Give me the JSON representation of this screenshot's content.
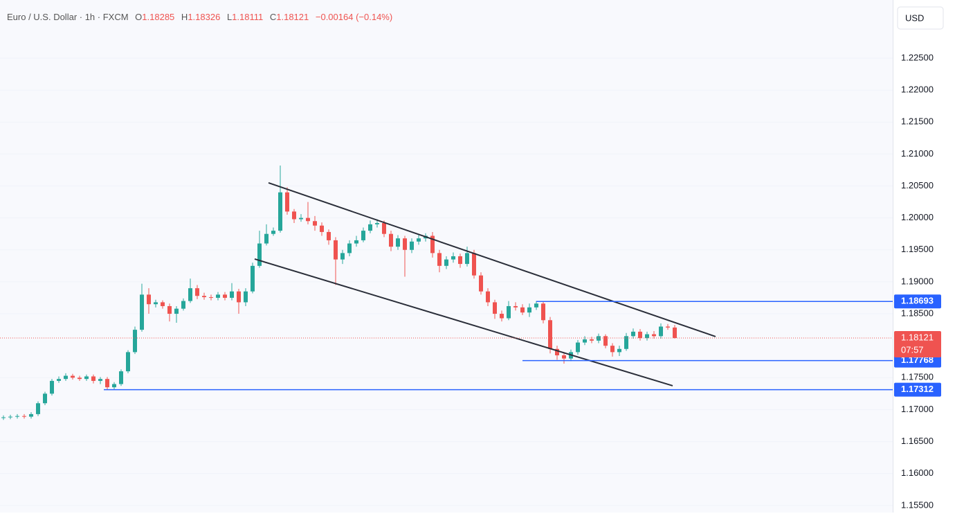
{
  "chart_data": {
    "type": "candlestick",
    "header": {
      "symbol": "Euro / U.S. Dollar · 1h · FXCM",
      "o_label": "O",
      "open": 1.18285,
      "h_label": "H",
      "high": 1.18326,
      "l_label": "L",
      "low": 1.18111,
      "c_label": "C",
      "close": 1.18121,
      "change": "−0.00164 (−0.14%)"
    },
    "currency": "USD",
    "countdown": "07:57",
    "open": [
      1.1687,
      1.1688,
      1.1689,
      1.169,
      1.1689,
      1.1693,
      1.171,
      1.1725,
      1.1745,
      1.1748,
      1.1753,
      1.175,
      1.1748,
      1.1752,
      1.1745,
      1.1748,
      1.1735,
      1.174,
      1.176,
      1.179,
      1.1825,
      1.188,
      1.1865,
      1.1868,
      1.1862,
      1.185,
      1.1858,
      1.187,
      1.189,
      1.1878,
      1.1876,
      1.1875,
      1.188,
      1.1875,
      1.1885,
      1.1868,
      1.1885,
      1.1925,
      1.196,
      1.1975,
      1.198,
      1.204,
      1.201,
      1.1998,
      1.2,
      1.1995,
      1.1988,
      1.1978,
      1.1965,
      1.1935,
      1.1945,
      1.196,
      1.1965,
      1.198,
      1.199,
      1.1992,
      1.1975,
      1.1955,
      1.1968,
      1.195,
      1.1963,
      1.1968,
      1.1972,
      1.1945,
      1.1925,
      1.1935,
      1.194,
      1.1928,
      1.1945,
      1.191,
      1.1885,
      1.1868,
      1.185,
      1.1843,
      1.1862,
      1.186,
      1.1852,
      1.186,
      1.1866,
      1.184,
      1.1795,
      1.1785,
      1.178,
      1.179,
      1.1805,
      1.181,
      1.1808,
      1.1815,
      1.18,
      1.179,
      1.1795,
      1.1815,
      1.1822,
      1.1812,
      1.1818,
      1.1815,
      1.183,
      1.18285
    ],
    "high": [
      1.1691,
      1.1692,
      1.1693,
      1.1693,
      1.1696,
      1.1713,
      1.1728,
      1.1748,
      1.1752,
      1.1757,
      1.1756,
      1.1753,
      1.1755,
      1.1755,
      1.1751,
      1.1751,
      1.1743,
      1.1763,
      1.1793,
      1.183,
      1.1897,
      1.189,
      1.1872,
      1.1871,
      1.1866,
      1.1862,
      1.1874,
      1.1905,
      1.1895,
      1.1883,
      1.188,
      1.1884,
      1.1884,
      1.1898,
      1.1889,
      1.189,
      1.193,
      1.198,
      1.199,
      1.1985,
      1.2082,
      1.2048,
      1.2014,
      1.2006,
      1.2025,
      1.2003,
      1.1993,
      1.1982,
      1.197,
      1.195,
      1.1965,
      1.1972,
      1.1985,
      1.1996,
      1.1998,
      1.1996,
      1.198,
      1.1973,
      1.1972,
      1.1968,
      1.1973,
      1.1976,
      1.1978,
      1.195,
      1.194,
      1.1946,
      1.1944,
      1.1955,
      1.195,
      1.1915,
      1.189,
      1.1872,
      1.1855,
      1.187,
      1.1868,
      1.1865,
      1.1866,
      1.187,
      1.1869,
      1.1845,
      1.18,
      1.179,
      1.1794,
      1.1809,
      1.1815,
      1.1814,
      1.1819,
      1.1818,
      1.1804,
      1.18,
      1.182,
      1.1827,
      1.1826,
      1.1822,
      1.1823,
      1.1835,
      1.1834,
      1.18326
    ],
    "low": [
      1.1684,
      1.1685,
      1.1686,
      1.1686,
      1.1686,
      1.169,
      1.1707,
      1.1722,
      1.1742,
      1.1745,
      1.1747,
      1.1745,
      1.1745,
      1.1741,
      1.174,
      1.1731,
      1.1731,
      1.1737,
      1.1757,
      1.1787,
      1.1822,
      1.185,
      1.186,
      1.1858,
      1.1838,
      1.1836,
      1.1855,
      1.1867,
      1.1873,
      1.1872,
      1.1871,
      1.1871,
      1.1871,
      1.1871,
      1.185,
      1.1862,
      1.1882,
      1.1922,
      1.1957,
      1.1972,
      1.1977,
      1.2005,
      1.1992,
      1.1994,
      1.199,
      1.198,
      1.1972,
      1.1958,
      1.1895,
      1.1928,
      1.194,
      1.1955,
      1.1962,
      1.1976,
      1.1985,
      1.197,
      1.1948,
      1.195,
      1.1908,
      1.1945,
      1.1958,
      1.1963,
      1.1938,
      1.1915,
      1.192,
      1.193,
      1.1922,
      1.1924,
      1.1905,
      1.188,
      1.1862,
      1.1842,
      1.1838,
      1.184,
      1.1855,
      1.1848,
      1.1845,
      1.1856,
      1.1835,
      1.1788,
      1.1778,
      1.1772,
      1.1776,
      1.1786,
      1.1801,
      1.1804,
      1.1804,
      1.1796,
      1.1783,
      1.1784,
      1.1792,
      1.1811,
      1.1808,
      1.1808,
      1.1811,
      1.1811,
      1.1825,
      1.18111
    ],
    "close": [
      1.1688,
      1.1689,
      1.169,
      1.1689,
      1.1693,
      1.171,
      1.1725,
      1.1745,
      1.1748,
      1.1753,
      1.175,
      1.1748,
      1.1752,
      1.1745,
      1.1748,
      1.1735,
      1.174,
      1.176,
      1.179,
      1.1825,
      1.188,
      1.1865,
      1.1868,
      1.1862,
      1.185,
      1.1858,
      1.187,
      1.189,
      1.1878,
      1.1876,
      1.1875,
      1.188,
      1.1875,
      1.1885,
      1.1868,
      1.1885,
      1.1925,
      1.196,
      1.1975,
      1.198,
      1.204,
      1.201,
      1.1998,
      1.2,
      1.1995,
      1.1988,
      1.1978,
      1.1965,
      1.1935,
      1.1945,
      1.196,
      1.1965,
      1.198,
      1.199,
      1.1992,
      1.1975,
      1.1955,
      1.1968,
      1.195,
      1.1963,
      1.1968,
      1.1972,
      1.1945,
      1.1925,
      1.1935,
      1.194,
      1.1928,
      1.1945,
      1.191,
      1.1885,
      1.1868,
      1.185,
      1.1843,
      1.1862,
      1.186,
      1.1852,
      1.186,
      1.1866,
      1.184,
      1.1795,
      1.1785,
      1.178,
      1.179,
      1.1805,
      1.181,
      1.1808,
      1.1815,
      1.18,
      1.179,
      1.1795,
      1.1815,
      1.1822,
      1.1812,
      1.1818,
      1.1815,
      1.183,
      1.18285,
      1.18121
    ],
    "ylim": [
      1.1539,
      1.2341
    ],
    "yticks": [
      {
        "value": 1.225,
        "label": "1.22500"
      },
      {
        "value": 1.22,
        "label": "1.22000"
      },
      {
        "value": 1.215,
        "label": "1.21500"
      },
      {
        "value": 1.21,
        "label": "1.21000"
      },
      {
        "value": 1.205,
        "label": "1.20500"
      },
      {
        "value": 1.2,
        "label": "1.20000"
      },
      {
        "value": 1.195,
        "label": "1.19500"
      },
      {
        "value": 1.19,
        "label": "1.19000"
      },
      {
        "value": 1.185,
        "label": "1.18500"
      },
      {
        "value": 1.175,
        "label": "1.17500"
      },
      {
        "value": 1.17,
        "label": "1.17000"
      },
      {
        "value": 1.165,
        "label": "1.16500"
      },
      {
        "value": 1.16,
        "label": "1.16000"
      },
      {
        "value": 1.155,
        "label": "1.15500"
      }
    ],
    "levels": [
      {
        "value": 1.18693,
        "from": 77
      },
      {
        "value": 1.17768,
        "from": 75
      },
      {
        "value": 1.17312,
        "from": 14.5
      }
    ],
    "trendlines": [
      {
        "from": [
          38.3,
          1.2055
        ],
        "to": [
          102.9,
          1.18144
        ]
      },
      {
        "from": [
          36.3,
          1.19357
        ],
        "to": [
          96.7,
          1.17374
        ]
      }
    ],
    "colors": {
      "up": "#26a69a",
      "down": "#ef5350",
      "level": "#2962ff",
      "trend": "#2a2e39"
    }
  }
}
